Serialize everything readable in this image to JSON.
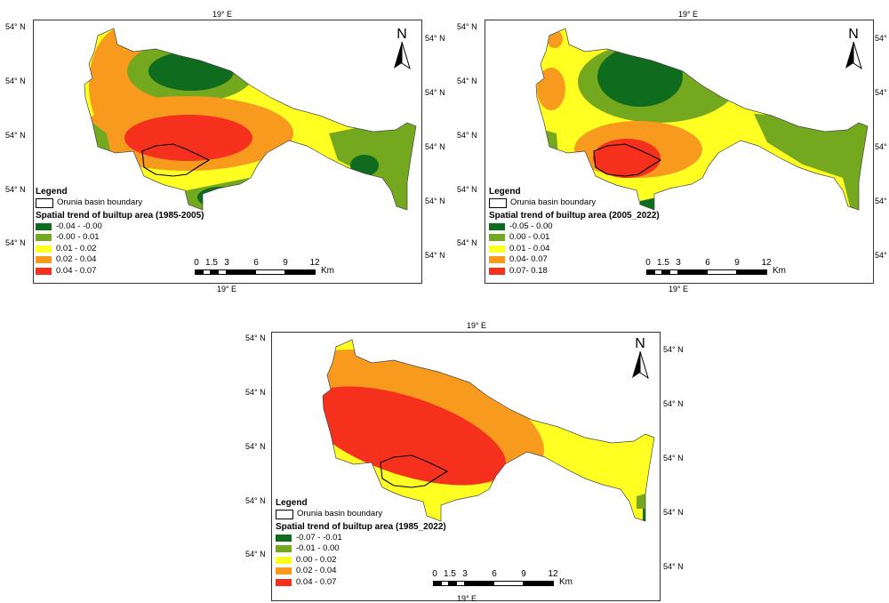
{
  "coords": {
    "lon": "19° E",
    "lat": "54° N",
    "lat_right": "54° N"
  },
  "north_label": "N",
  "legend_heading": "Legend",
  "boundary_label": "Orunia basin boundary",
  "scale": {
    "ticks": [
      "0",
      "1.5",
      "3",
      "6",
      "9",
      "12"
    ],
    "unit": "Km"
  },
  "panels": [
    {
      "trend_title": "Spatial trend of builtup area (1985-2005)",
      "classes": [
        {
          "label": "-0.04 - -0.00",
          "color": "#0f6b1d"
        },
        {
          "label": "-0.00 - 0.01",
          "color": "#74a81f"
        },
        {
          "label": "0.01 - 0.02",
          "color": "#ffff22"
        },
        {
          "label": "0.02 - 0.04",
          "color": "#f79a1d"
        },
        {
          "label": "0.04 - 0.07",
          "color": "#f5301c"
        }
      ]
    },
    {
      "trend_title": "Spatial trend of builtup area (2005_2022)",
      "classes": [
        {
          "label": "-0.05 - 0.00",
          "color": "#0f6b1d"
        },
        {
          "label": "0.00 - 0.01",
          "color": "#74a81f"
        },
        {
          "label": "0.01 - 0.04",
          "color": "#ffff22"
        },
        {
          "label": "0.04- 0.07",
          "color": "#f79a1d"
        },
        {
          "label": "0.07- 0.18",
          "color": "#f5301c"
        }
      ]
    },
    {
      "trend_title": "Spatial trend of builtup area (1985_2022)",
      "classes": [
        {
          "label": "-0.07 - -0.01",
          "color": "#0f6b1d"
        },
        {
          "label": "-0.01 - 0.00",
          "color": "#74a81f"
        },
        {
          "label": "0.00 - 0.02",
          "color": "#ffff22"
        },
        {
          "label": "0.02 - 0.04",
          "color": "#f79a1d"
        },
        {
          "label": "0.04 - 0.07",
          "color": "#f5301c"
        }
      ]
    }
  ]
}
